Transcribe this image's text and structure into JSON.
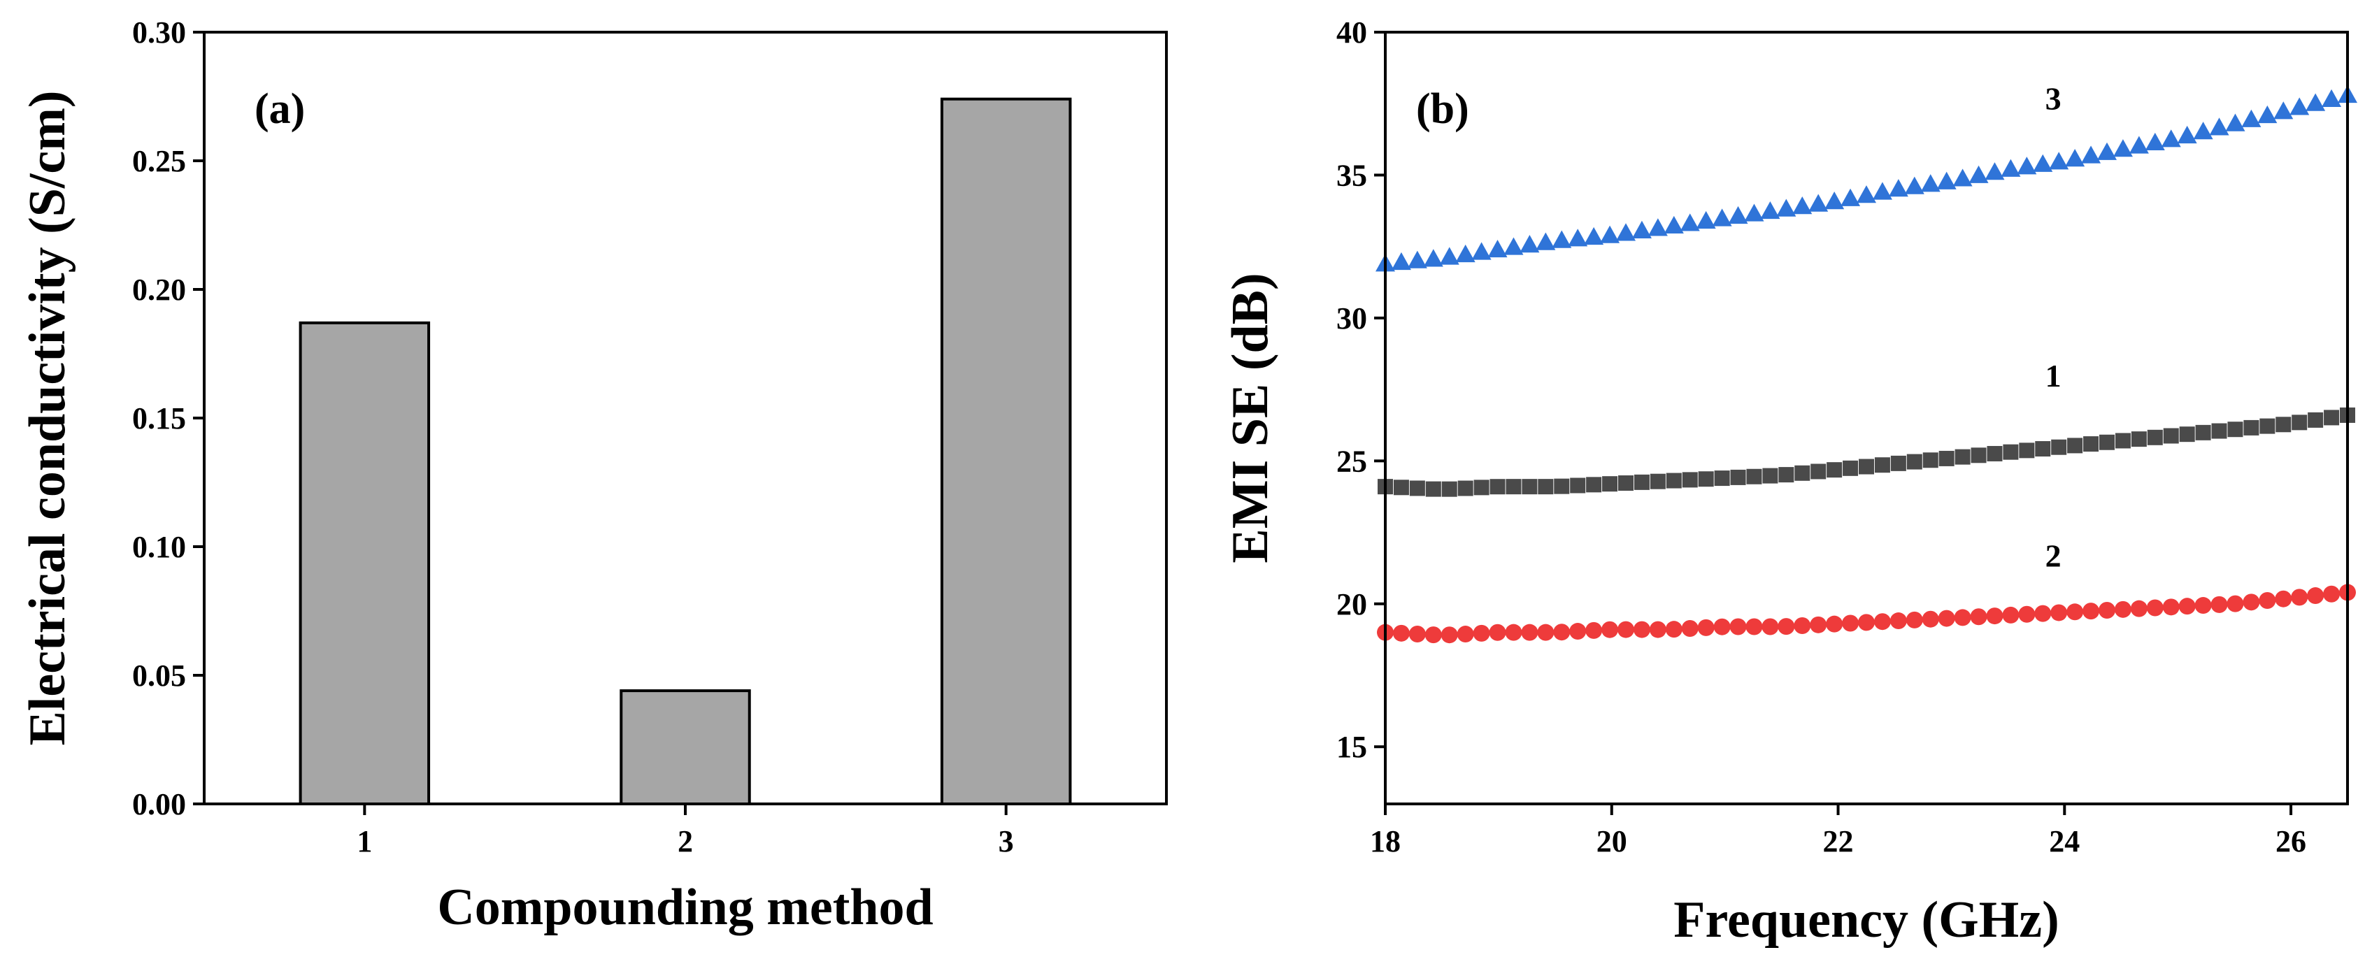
{
  "chart_data": [
    {
      "type": "bar",
      "panel_label": "(a)",
      "categories": [
        "1",
        "2",
        "3"
      ],
      "values": [
        0.187,
        0.044,
        0.274
      ],
      "xlabel": "Compounding method",
      "ylabel": "Electrical conductivity (S/cm)",
      "ylim": [
        0,
        0.3
      ],
      "yticks": [
        "0.00",
        "0.05",
        "0.10",
        "0.15",
        "0.20",
        "0.25",
        "0.30"
      ],
      "bar_color": "#a6a6a6",
      "grid": false
    },
    {
      "type": "scatter",
      "panel_label": "(b)",
      "xlabel": "Frequency (GHz)",
      "ylabel": "EMI SE (dB)",
      "xlim": [
        18,
        26.5
      ],
      "ylim": [
        13,
        40
      ],
      "xticks": [
        "18",
        "20",
        "22",
        "24",
        "26"
      ],
      "yticks": [
        "15",
        "20",
        "25",
        "30",
        "35",
        "40"
      ],
      "grid": false,
      "series": [
        {
          "name": "3",
          "marker": "triangle",
          "color": "#2f74d8",
          "x": [
            18.0,
            18.5,
            19.0,
            19.5,
            20.0,
            20.5,
            21.0,
            21.5,
            22.0,
            22.5,
            23.0,
            23.5,
            24.0,
            24.5,
            25.0,
            25.5,
            26.0,
            26.5
          ],
          "y": [
            31.9,
            32.1,
            32.4,
            32.7,
            32.9,
            33.2,
            33.5,
            33.8,
            34.1,
            34.5,
            34.8,
            35.2,
            35.5,
            35.9,
            36.3,
            36.8,
            37.3,
            37.8
          ]
        },
        {
          "name": "1",
          "marker": "square",
          "color": "#4a4a4a",
          "x": [
            18.0,
            18.5,
            19.0,
            19.5,
            20.0,
            20.5,
            21.0,
            21.5,
            22.0,
            22.5,
            23.0,
            23.5,
            24.0,
            24.5,
            25.0,
            25.5,
            26.0,
            26.5
          ],
          "y": [
            24.1,
            24.0,
            24.1,
            24.1,
            24.2,
            24.3,
            24.4,
            24.5,
            24.7,
            24.9,
            25.1,
            25.3,
            25.5,
            25.7,
            25.9,
            26.1,
            26.3,
            26.6
          ]
        },
        {
          "name": "2",
          "marker": "circle",
          "color": "#ee3b3b",
          "x": [
            18.0,
            18.5,
            19.0,
            19.5,
            20.0,
            20.5,
            21.0,
            21.5,
            22.0,
            22.5,
            23.0,
            23.5,
            24.0,
            24.5,
            25.0,
            25.5,
            26.0,
            26.5
          ],
          "y": [
            19.0,
            18.9,
            19.0,
            19.0,
            19.1,
            19.1,
            19.2,
            19.2,
            19.3,
            19.4,
            19.5,
            19.6,
            19.7,
            19.8,
            19.9,
            20.0,
            20.2,
            20.4
          ]
        }
      ],
      "annotations": [
        {
          "text": "3",
          "x": 23.9,
          "y": 37.3
        },
        {
          "text": "1",
          "x": 23.9,
          "y": 27.6
        },
        {
          "text": "2",
          "x": 23.9,
          "y": 21.3
        }
      ]
    }
  ]
}
